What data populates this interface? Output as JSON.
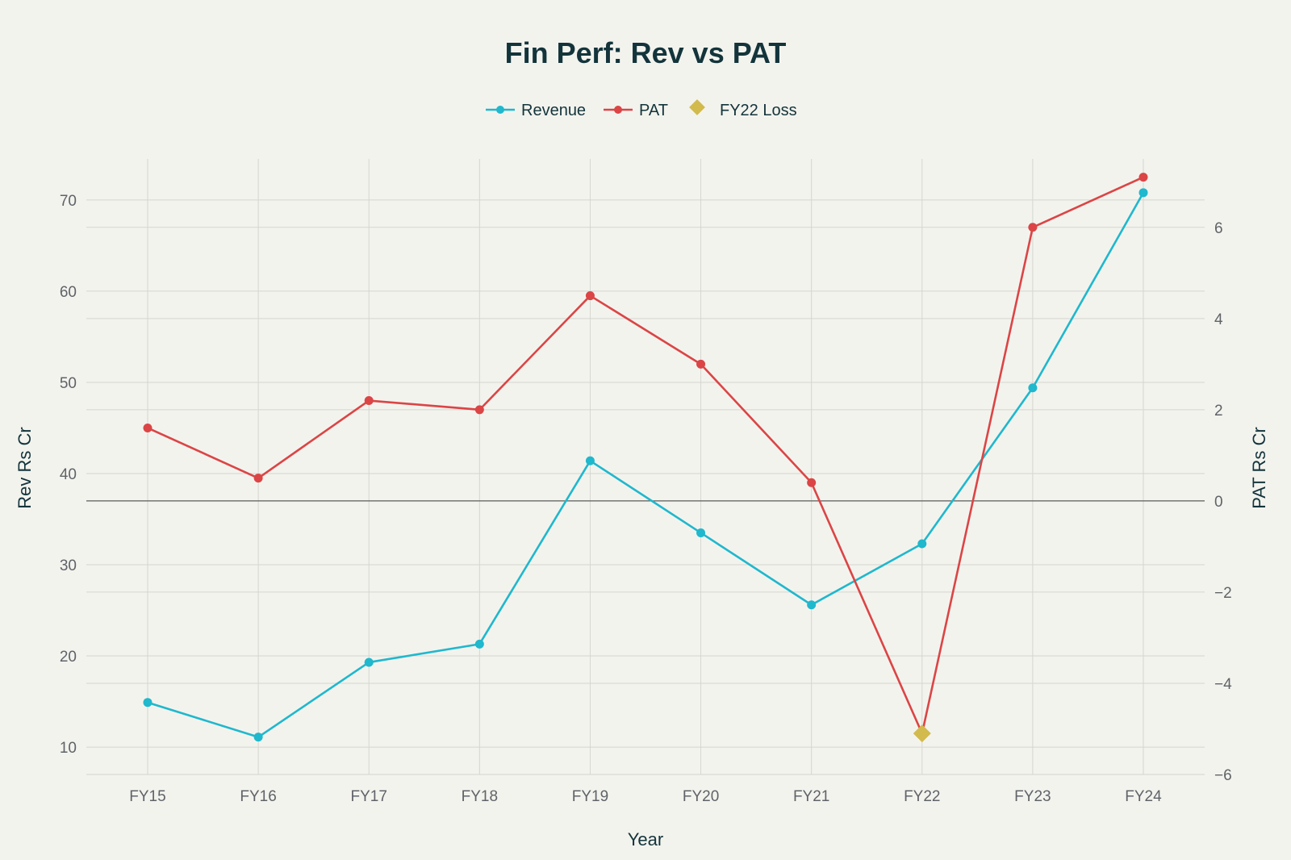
{
  "chart_data": {
    "type": "line",
    "title": "Fin Perf: Rev vs PAT",
    "xlabel": "Year",
    "ylabel": "Rev Rs Cr",
    "y2label": "PAT Rs Cr",
    "categories": [
      "FY15",
      "FY16",
      "FY17",
      "FY18",
      "FY19",
      "FY20",
      "FY21",
      "FY22",
      "FY23",
      "FY24"
    ],
    "ylim": [
      7,
      74.5
    ],
    "y2lim": [
      -6,
      7.5
    ],
    "y_ticks": [
      10,
      20,
      30,
      40,
      50,
      60,
      70
    ],
    "y2_ticks": [
      -6,
      -4,
      -2,
      0,
      2,
      4,
      6
    ],
    "y_tick_labels": [
      "10",
      "20",
      "30",
      "40",
      "50",
      "60",
      "70"
    ],
    "y2_tick_labels": [
      "−6",
      "−4",
      "−2",
      "0",
      "2",
      "4",
      "6"
    ],
    "grid": true,
    "legend_position": "top-center",
    "series": [
      {
        "name": "Revenue",
        "axis": "left",
        "color": "#1fb8cd",
        "values": [
          14.9,
          11.1,
          19.3,
          21.3,
          41.4,
          33.5,
          25.6,
          32.3,
          49.4,
          70.8
        ]
      },
      {
        "name": "PAT",
        "axis": "right",
        "color": "#db4545",
        "values": [
          1.6,
          0.5,
          2.2,
          2.0,
          4.5,
          3.0,
          0.4,
          -5.1,
          6.0,
          7.1
        ]
      }
    ],
    "markers": [
      {
        "name": "FY22 Loss",
        "axis": "right",
        "category": "FY22",
        "value": -5.1,
        "color": "#d2ba4c",
        "shape": "diamond"
      }
    ]
  }
}
